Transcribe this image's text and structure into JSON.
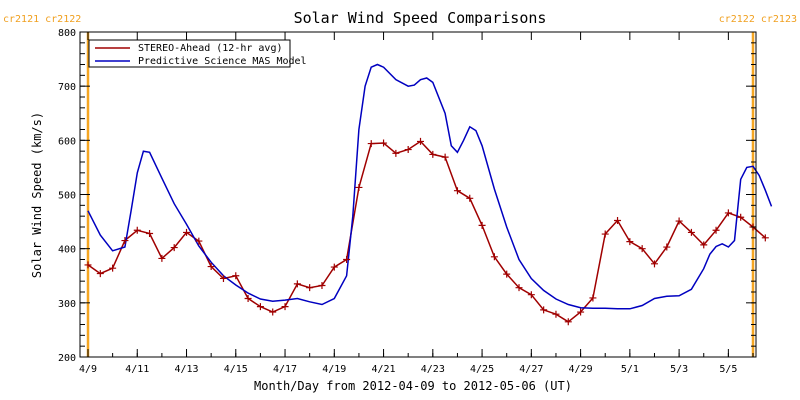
{
  "chart_data": {
    "type": "line",
    "title": "Solar Wind Speed Comparisons",
    "xlabel": "Month/Day from 2012-04-09 to 2012-05-06 (UT)",
    "ylabel": "Solar Wind Speed (km/s)",
    "xlim": [
      "2012-04-09",
      "2012-05-06"
    ],
    "ylim": [
      200,
      800
    ],
    "grid": false,
    "legend_position": "top-left",
    "x_ticks": [
      {
        "date": "2012-04-09",
        "label": "4/9"
      },
      {
        "date": "2012-04-11",
        "label": "4/11"
      },
      {
        "date": "2012-04-13",
        "label": "4/13"
      },
      {
        "date": "2012-04-15",
        "label": "4/15"
      },
      {
        "date": "2012-04-17",
        "label": "4/17"
      },
      {
        "date": "2012-04-19",
        "label": "4/19"
      },
      {
        "date": "2012-04-21",
        "label": "4/21"
      },
      {
        "date": "2012-04-23",
        "label": "4/23"
      },
      {
        "date": "2012-04-25",
        "label": "4/25"
      },
      {
        "date": "2012-04-27",
        "label": "4/27"
      },
      {
        "date": "2012-04-29",
        "label": "4/29"
      },
      {
        "date": "2012-05-01",
        "label": "5/1"
      },
      {
        "date": "2012-05-03",
        "label": "5/3"
      },
      {
        "date": "2012-05-05",
        "label": "5/5"
      }
    ],
    "y_ticks": [
      200,
      300,
      400,
      500,
      600,
      700,
      800
    ],
    "carrington_markers": [
      {
        "date": "2012-04-09",
        "label": "cr2121 cr2122",
        "anchor": "start"
      },
      {
        "date": "2012-05-06",
        "label": "cr2122 cr2123",
        "anchor": "end"
      }
    ],
    "series": [
      {
        "name": "STEREO-Ahead (12-hr avg)",
        "color": "#a00000",
        "markers": true,
        "points": [
          [
            "2012-04-09 00:00",
            370
          ],
          [
            "2012-04-09 12:00",
            354
          ],
          [
            "2012-04-10 00:00",
            364
          ],
          [
            "2012-04-10 12:00",
            415
          ],
          [
            "2012-04-11 00:00",
            434
          ],
          [
            "2012-04-11 12:00",
            428
          ],
          [
            "2012-04-12 00:00",
            382
          ],
          [
            "2012-04-12 12:00",
            402
          ],
          [
            "2012-04-13 00:00",
            430
          ],
          [
            "2012-04-13 12:00",
            414
          ],
          [
            "2012-04-14 00:00",
            367
          ],
          [
            "2012-04-14 12:00",
            345
          ],
          [
            "2012-04-15 00:00",
            350
          ],
          [
            "2012-04-15 12:00",
            308
          ],
          [
            "2012-04-16 00:00",
            293
          ],
          [
            "2012-04-16 12:00",
            283
          ],
          [
            "2012-04-17 00:00",
            293
          ],
          [
            "2012-04-17 12:00",
            335
          ],
          [
            "2012-04-18 00:00",
            328
          ],
          [
            "2012-04-18 12:00",
            332
          ],
          [
            "2012-04-19 00:00",
            366
          ],
          [
            "2012-04-19 12:00",
            380
          ],
          [
            "2012-04-20 00:00",
            513
          ],
          [
            "2012-04-20 12:00",
            594
          ],
          [
            "2012-04-21 00:00",
            595
          ],
          [
            "2012-04-21 12:00",
            576
          ],
          [
            "2012-04-22 00:00",
            583
          ],
          [
            "2012-04-22 12:00",
            598
          ],
          [
            "2012-04-23 00:00",
            574
          ],
          [
            "2012-04-23 12:00",
            569
          ],
          [
            "2012-04-24 00:00",
            507
          ],
          [
            "2012-04-24 12:00",
            493
          ],
          [
            "2012-04-25 00:00",
            443
          ],
          [
            "2012-04-25 12:00",
            385
          ],
          [
            "2012-04-26 00:00",
            353
          ],
          [
            "2012-04-26 12:00",
            328
          ],
          [
            "2012-04-27 00:00",
            315
          ],
          [
            "2012-04-27 12:00",
            287
          ],
          [
            "2012-04-28 00:00",
            279
          ],
          [
            "2012-04-28 12:00",
            265
          ],
          [
            "2012-04-29 00:00",
            283
          ],
          [
            "2012-04-29 12:00",
            309
          ],
          [
            "2012-04-30 00:00",
            427
          ],
          [
            "2012-04-30 12:00",
            452
          ],
          [
            "2012-05-01 00:00",
            413
          ],
          [
            "2012-05-01 12:00",
            400
          ],
          [
            "2012-05-02 00:00",
            372
          ],
          [
            "2012-05-02 12:00",
            403
          ],
          [
            "2012-05-03 00:00",
            451
          ],
          [
            "2012-05-03 12:00",
            430
          ],
          [
            "2012-05-04 00:00",
            407
          ],
          [
            "2012-05-04 12:00",
            434
          ],
          [
            "2012-05-05 00:00",
            466
          ],
          [
            "2012-05-05 12:00",
            458
          ],
          [
            "2012-05-06 00:00",
            440
          ],
          [
            "2012-05-06 12:00",
            420
          ]
        ]
      },
      {
        "name": "Predictive Science MAS Model",
        "color": "#0000c0",
        "markers": false,
        "points": [
          [
            "2012-04-09 00:00",
            470
          ],
          [
            "2012-04-09 12:00",
            425
          ],
          [
            "2012-04-10 00:00",
            396
          ],
          [
            "2012-04-10 12:00",
            403
          ],
          [
            "2012-04-10 18:00",
            470
          ],
          [
            "2012-04-11 00:00",
            540
          ],
          [
            "2012-04-11 06:00",
            580
          ],
          [
            "2012-04-11 12:00",
            578
          ],
          [
            "2012-04-12 00:00",
            530
          ],
          [
            "2012-04-12 12:00",
            483
          ],
          [
            "2012-04-13 00:00",
            445
          ],
          [
            "2012-04-13 12:00",
            405
          ],
          [
            "2012-04-14 00:00",
            375
          ],
          [
            "2012-04-14 12:00",
            350
          ],
          [
            "2012-04-15 00:00",
            333
          ],
          [
            "2012-04-15 12:00",
            318
          ],
          [
            "2012-04-16 00:00",
            307
          ],
          [
            "2012-04-16 12:00",
            303
          ],
          [
            "2012-04-17 00:00",
            305
          ],
          [
            "2012-04-17 12:00",
            308
          ],
          [
            "2012-04-18 00:00",
            302
          ],
          [
            "2012-04-18 12:00",
            297
          ],
          [
            "2012-04-19 00:00",
            308
          ],
          [
            "2012-04-19 12:00",
            350
          ],
          [
            "2012-04-19 18:00",
            460
          ],
          [
            "2012-04-20 00:00",
            620
          ],
          [
            "2012-04-20 06:00",
            700
          ],
          [
            "2012-04-20 12:00",
            735
          ],
          [
            "2012-04-20 18:00",
            740
          ],
          [
            "2012-04-21 00:00",
            735
          ],
          [
            "2012-04-21 12:00",
            712
          ],
          [
            "2012-04-22 00:00",
            700
          ],
          [
            "2012-04-22 06:00",
            702
          ],
          [
            "2012-04-22 12:00",
            712
          ],
          [
            "2012-04-22 18:00",
            715
          ],
          [
            "2012-04-23 00:00",
            707
          ],
          [
            "2012-04-23 12:00",
            650
          ],
          [
            "2012-04-23 18:00",
            590
          ],
          [
            "2012-04-24 00:00",
            578
          ],
          [
            "2012-04-24 06:00",
            600
          ],
          [
            "2012-04-24 12:00",
            625
          ],
          [
            "2012-04-24 18:00",
            618
          ],
          [
            "2012-04-25 00:00",
            590
          ],
          [
            "2012-04-25 12:00",
            510
          ],
          [
            "2012-04-26 00:00",
            440
          ],
          [
            "2012-04-26 12:00",
            380
          ],
          [
            "2012-04-27 00:00",
            345
          ],
          [
            "2012-04-27 12:00",
            323
          ],
          [
            "2012-04-28 00:00",
            307
          ],
          [
            "2012-04-28 12:00",
            297
          ],
          [
            "2012-04-29 00:00",
            291
          ],
          [
            "2012-04-29 12:00",
            290
          ],
          [
            "2012-04-30 00:00",
            290
          ],
          [
            "2012-04-30 12:00",
            289
          ],
          [
            "2012-05-01 00:00",
            289
          ],
          [
            "2012-05-01 12:00",
            295
          ],
          [
            "2012-05-02 00:00",
            308
          ],
          [
            "2012-05-02 12:00",
            312
          ],
          [
            "2012-05-03 00:00",
            313
          ],
          [
            "2012-05-03 12:00",
            325
          ],
          [
            "2012-05-04 00:00",
            363
          ],
          [
            "2012-05-04 06:00",
            390
          ],
          [
            "2012-05-04 12:00",
            404
          ],
          [
            "2012-05-04 18:00",
            409
          ],
          [
            "2012-05-05 00:00",
            403
          ],
          [
            "2012-05-05 06:00",
            415
          ],
          [
            "2012-05-05 12:00",
            528
          ],
          [
            "2012-05-05 18:00",
            550
          ],
          [
            "2012-05-06 00:00",
            552
          ],
          [
            "2012-05-06 06:00",
            535
          ],
          [
            "2012-05-06 12:00",
            508
          ],
          [
            "2012-05-06 18:00",
            478
          ]
        ]
      }
    ]
  }
}
